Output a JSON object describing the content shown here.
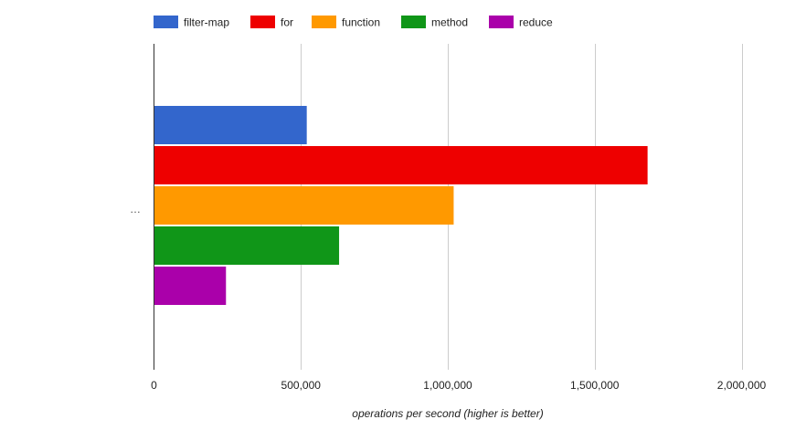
{
  "chart_data": {
    "type": "bar",
    "orientation": "horizontal",
    "categories": [
      "…"
    ],
    "series": [
      {
        "name": "filter-map",
        "values": [
          520000
        ],
        "color": "#3366cc"
      },
      {
        "name": "for",
        "values": [
          1680000
        ],
        "color": "#ee0000"
      },
      {
        "name": "function",
        "values": [
          1020000
        ],
        "color": "#ff9900"
      },
      {
        "name": "method",
        "values": [
          630000
        ],
        "color": "#109618"
      },
      {
        "name": "reduce",
        "values": [
          245000
        ],
        "color": "#aa00aa"
      }
    ],
    "xlabel": "operations per second (higher is better)",
    "xlim": [
      0,
      2000000
    ],
    "xticks": [
      {
        "value": 0,
        "label": "0"
      },
      {
        "value": 500000,
        "label": "500,000"
      },
      {
        "value": 1000000,
        "label": "1,000,000"
      },
      {
        "value": 1500000,
        "label": "1,500,000"
      },
      {
        "value": 2000000,
        "label": "2,000,000"
      }
    ],
    "grid": true,
    "legend_position": "top-left"
  }
}
